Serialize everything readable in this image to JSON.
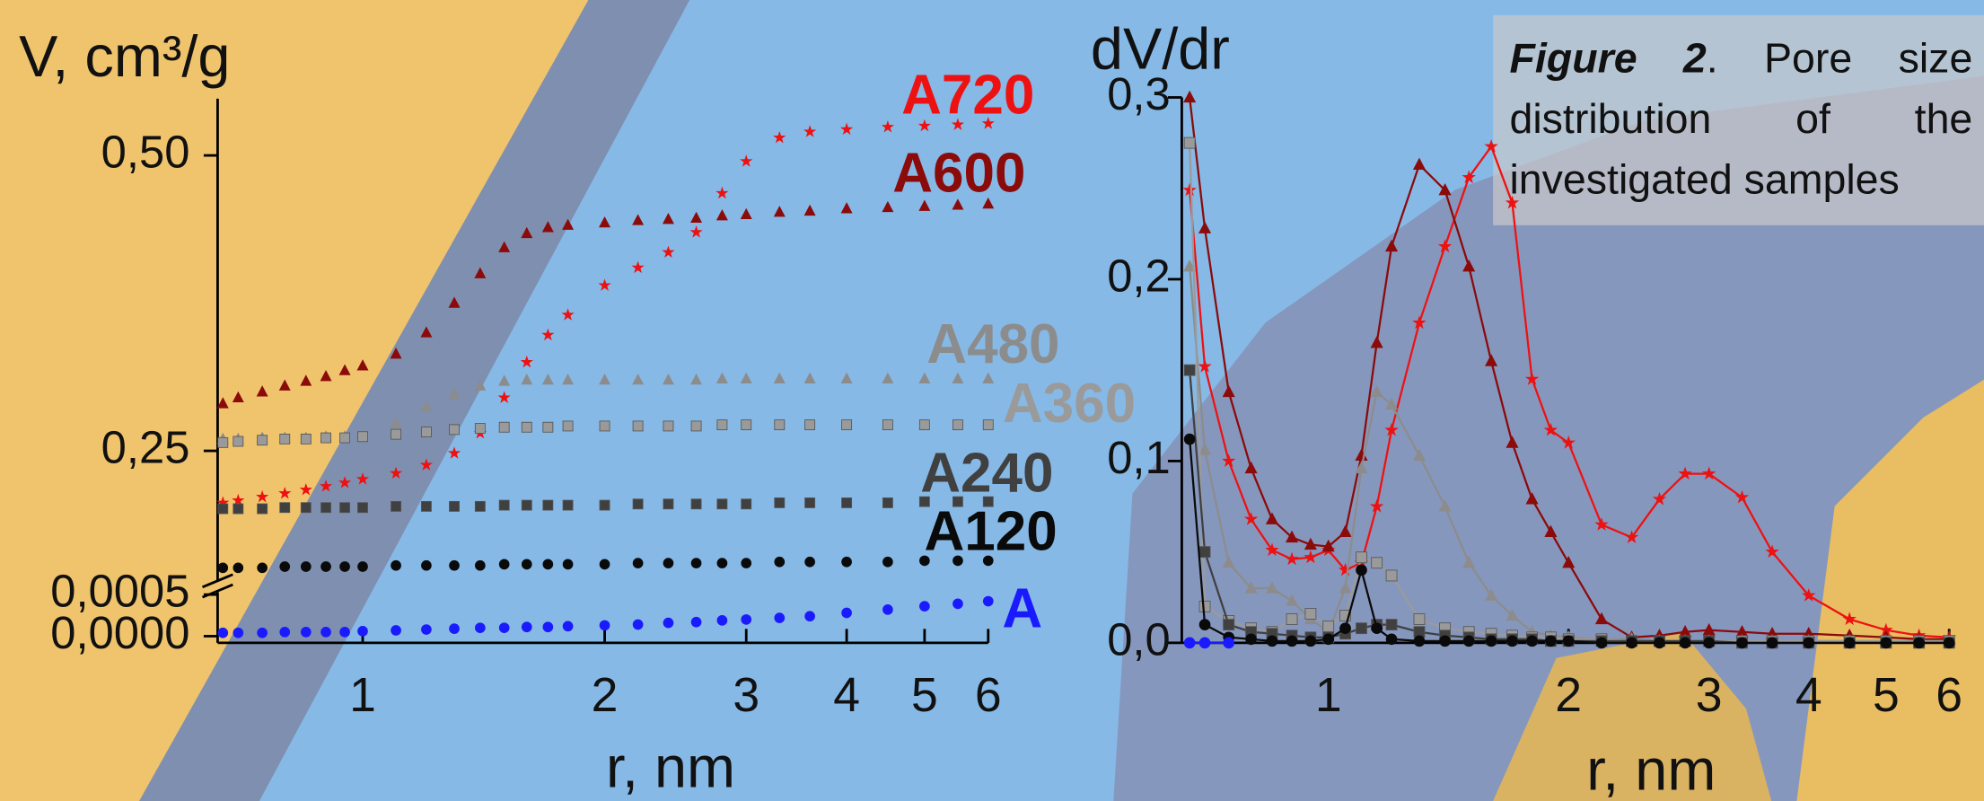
{
  "chart_data": [
    {
      "type": "scatter",
      "y_title": "V, cm³/g",
      "x_title": "r, nm",
      "xlog": true,
      "xlim": [
        0.66,
        6
      ],
      "xticks": [
        1,
        2,
        3,
        4,
        5,
        6
      ],
      "ylim": [
        0.14,
        0.548
      ],
      "yticks": [
        {
          "value": 0.25,
          "label": "0,25"
        },
        {
          "value": 0.5,
          "label": "0,50"
        }
      ],
      "lower_ylim": [
        -8e-05,
        0.00062
      ],
      "lower_yticks": [
        {
          "value": 0,
          "label": "0,0000"
        },
        {
          "value": 0.0005,
          "label": "0,0005"
        }
      ],
      "x": [
        0.67,
        0.7,
        0.75,
        0.8,
        0.85,
        0.9,
        0.95,
        1.0,
        1.1,
        1.2,
        1.3,
        1.4,
        1.5,
        1.6,
        1.7,
        1.8,
        2.0,
        2.2,
        2.4,
        2.6,
        2.8,
        3.0,
        3.3,
        3.6,
        4.0,
        4.5,
        5.0,
        5.5,
        6.0
      ],
      "series": [
        {
          "name": "A720",
          "color": "#ee1111",
          "marker": "star",
          "values": [
            0.206,
            0.208,
            0.211,
            0.214,
            0.217,
            0.22,
            0.223,
            0.226,
            0.231,
            0.238,
            0.248,
            0.265,
            0.295,
            0.325,
            0.348,
            0.365,
            0.39,
            0.405,
            0.418,
            0.435,
            0.468,
            0.495,
            0.515,
            0.52,
            0.522,
            0.524,
            0.525,
            0.526,
            0.527
          ]
        },
        {
          "name": "A600",
          "color": "#8b0a0a",
          "marker": "triangle",
          "values": [
            0.29,
            0.295,
            0.3,
            0.305,
            0.309,
            0.313,
            0.318,
            0.322,
            0.332,
            0.35,
            0.375,
            0.4,
            0.422,
            0.434,
            0.439,
            0.441,
            0.443,
            0.445,
            0.446,
            0.447,
            0.449,
            0.45,
            0.452,
            0.453,
            0.455,
            0.456,
            0.457,
            0.458,
            0.459
          ]
        },
        {
          "name": "A480",
          "color": "#8c8c8c",
          "marker": "triangle",
          "values": [
            0.26,
            0.26,
            0.261,
            0.261,
            0.261,
            0.262,
            0.262,
            0.262,
            0.273,
            0.287,
            0.298,
            0.305,
            0.309,
            0.31,
            0.31,
            0.31,
            0.31,
            0.31,
            0.31,
            0.31,
            0.311,
            0.311,
            0.311,
            0.311,
            0.311,
            0.311,
            0.311,
            0.311,
            0.311
          ]
        },
        {
          "name": "A360",
          "color": "#9a9a9a",
          "marker": "square",
          "values": [
            0.257,
            0.258,
            0.259,
            0.26,
            0.26,
            0.261,
            0.261,
            0.262,
            0.264,
            0.266,
            0.268,
            0.269,
            0.27,
            0.27,
            0.27,
            0.271,
            0.271,
            0.271,
            0.271,
            0.271,
            0.272,
            0.272,
            0.272,
            0.272,
            0.272,
            0.272,
            0.272,
            0.272,
            0.272
          ]
        },
        {
          "name": "A240",
          "color": "#404040",
          "marker": "square",
          "values": [
            0.201,
            0.201,
            0.201,
            0.202,
            0.202,
            0.202,
            0.202,
            0.202,
            0.203,
            0.203,
            0.203,
            0.203,
            0.204,
            0.204,
            0.204,
            0.204,
            0.204,
            0.205,
            0.205,
            0.205,
            0.205,
            0.205,
            0.206,
            0.206,
            0.206,
            0.206,
            0.207,
            0.207,
            0.207
          ]
        },
        {
          "name": "A120",
          "color": "#0a0a0a",
          "marker": "circle",
          "values": [
            0.151,
            0.151,
            0.151,
            0.152,
            0.152,
            0.152,
            0.152,
            0.152,
            0.153,
            0.153,
            0.153,
            0.153,
            0.154,
            0.154,
            0.154,
            0.154,
            0.154,
            0.155,
            0.155,
            0.155,
            0.155,
            0.155,
            0.156,
            0.156,
            0.156,
            0.156,
            0.157,
            0.157,
            0.157
          ]
        },
        {
          "name": "A",
          "color": "#1a1aff",
          "marker": "circle",
          "axis": "lower",
          "values": [
            4e-05,
            4e-05,
            4e-05,
            5e-05,
            5e-05,
            5e-05,
            5e-05,
            6e-05,
            7e-05,
            8e-05,
            9e-05,
            0.0001,
            0.0001,
            0.00011,
            0.00011,
            0.00012,
            0.00013,
            0.00014,
            0.00016,
            0.00017,
            0.00019,
            0.0002,
            0.00022,
            0.00024,
            0.00028,
            0.00032,
            0.00036,
            0.00039,
            0.00042
          ]
        }
      ]
    },
    {
      "type": "line",
      "y_title": "dV/dr",
      "x_title": "r, nm",
      "xlog": true,
      "xlim": [
        0.655,
        6.1
      ],
      "xticks": [
        1,
        2,
        3,
        4,
        5,
        6
      ],
      "ylim": [
        0,
        0.3
      ],
      "yticks": [
        {
          "value": 0,
          "label": "0,0"
        },
        {
          "value": 0.1,
          "label": "0,1"
        },
        {
          "value": 0.2,
          "label": "0,2"
        },
        {
          "value": 0.3,
          "label": "0,3"
        }
      ],
      "x": [
        0.67,
        0.7,
        0.75,
        0.8,
        0.85,
        0.9,
        0.95,
        1.0,
        1.05,
        1.1,
        1.15,
        1.2,
        1.3,
        1.4,
        1.5,
        1.6,
        1.7,
        1.8,
        1.9,
        2.0,
        2.2,
        2.4,
        2.6,
        2.8,
        3.0,
        3.3,
        3.6,
        4.0,
        4.5,
        5.0,
        5.5,
        6.0
      ],
      "series": [
        {
          "color": "#ee1111",
          "marker": "star",
          "values": [
            0.249,
            0.152,
            0.1,
            0.068,
            0.051,
            0.046,
            0.047,
            0.051,
            0.04,
            0.044,
            0.075,
            0.117,
            0.176,
            0.218,
            0.256,
            0.273,
            0.242,
            0.145,
            0.117,
            0.11,
            0.065,
            0.058,
            0.079,
            0.093,
            0.093,
            0.08,
            0.05,
            0.026,
            0.013,
            0.007,
            0.004,
            0.003
          ]
        },
        {
          "color": "#8b0a0a",
          "marker": "triangle",
          "values": [
            0.3,
            0.228,
            0.138,
            0.096,
            0.068,
            0.058,
            0.054,
            0.053,
            0.061,
            0.103,
            0.165,
            0.218,
            0.263,
            0.249,
            0.207,
            0.155,
            0.11,
            0.079,
            0.061,
            0.044,
            0.013,
            0.003,
            0.004,
            0.006,
            0.007,
            0.006,
            0.005,
            0.005,
            0.004,
            0.003,
            0.002,
            0.002
          ]
        },
        {
          "color": "#8c8c8c",
          "marker": "triangle",
          "values": [
            0.207,
            0.106,
            0.044,
            0.03,
            0.03,
            0.023,
            0.013,
            0.006,
            0.03,
            0.096,
            0.138,
            0.131,
            0.103,
            0.075,
            0.044,
            0.026,
            0.015,
            0.006,
            0.004,
            0.003,
            0.002,
            0.002,
            0.001,
            0.001,
            0.001,
            0.001,
            0.001,
            0.001,
            0.001,
            0.001,
            0.001,
            0.001
          ]
        },
        {
          "color": "#9a9a9a",
          "marker": "square",
          "values": [
            0.275,
            0.02,
            0.012,
            0.008,
            0.006,
            0.013,
            0.016,
            0.009,
            0.015,
            0.047,
            0.044,
            0.037,
            0.013,
            0.008,
            0.006,
            0.005,
            0.004,
            0.003,
            0.003,
            0.002,
            0.002,
            0.001,
            0.001,
            0.001,
            0.001,
            0.001,
            0.001,
            0.001,
            0.001,
            0.001,
            0.001,
            0.001
          ]
        },
        {
          "color": "#404040",
          "marker": "square",
          "values": [
            0.15,
            0.05,
            0.01,
            0.006,
            0.005,
            0.004,
            0.003,
            0.003,
            0.005,
            0.008,
            0.01,
            0.01,
            0.006,
            0.004,
            0.003,
            0.002,
            0.002,
            0.002,
            0.001,
            0.001,
            0.001,
            0.001,
            0.001,
            0.001,
            0.001,
            0,
            0,
            0,
            0,
            0,
            0,
            0
          ]
        },
        {
          "color": "#0a0a0a",
          "marker": "circle",
          "values": [
            0.112,
            0.01,
            0.003,
            0.002,
            0.001,
            0.001,
            0.001,
            0.002,
            0.008,
            0.04,
            0.008,
            0.002,
            0.001,
            0.001,
            0.001,
            0.001,
            0.001,
            0.001,
            0.001,
            0.001,
            0,
            0,
            0,
            0,
            0,
            0,
            0,
            0,
            0,
            0,
            0,
            0
          ]
        },
        {
          "color": "#1a1aff",
          "marker": "circle",
          "values": [
            0,
            0,
            0,
            null,
            null,
            null,
            null,
            null,
            null,
            null,
            null,
            null,
            null,
            null,
            null,
            null,
            null,
            null,
            null,
            null,
            null,
            null,
            null,
            null,
            null,
            null,
            null,
            null,
            null,
            null,
            null,
            null
          ]
        }
      ]
    }
  ],
  "caption": {
    "label": "Figure 2",
    "text": ". Pore size distribution of the investigated samples"
  }
}
